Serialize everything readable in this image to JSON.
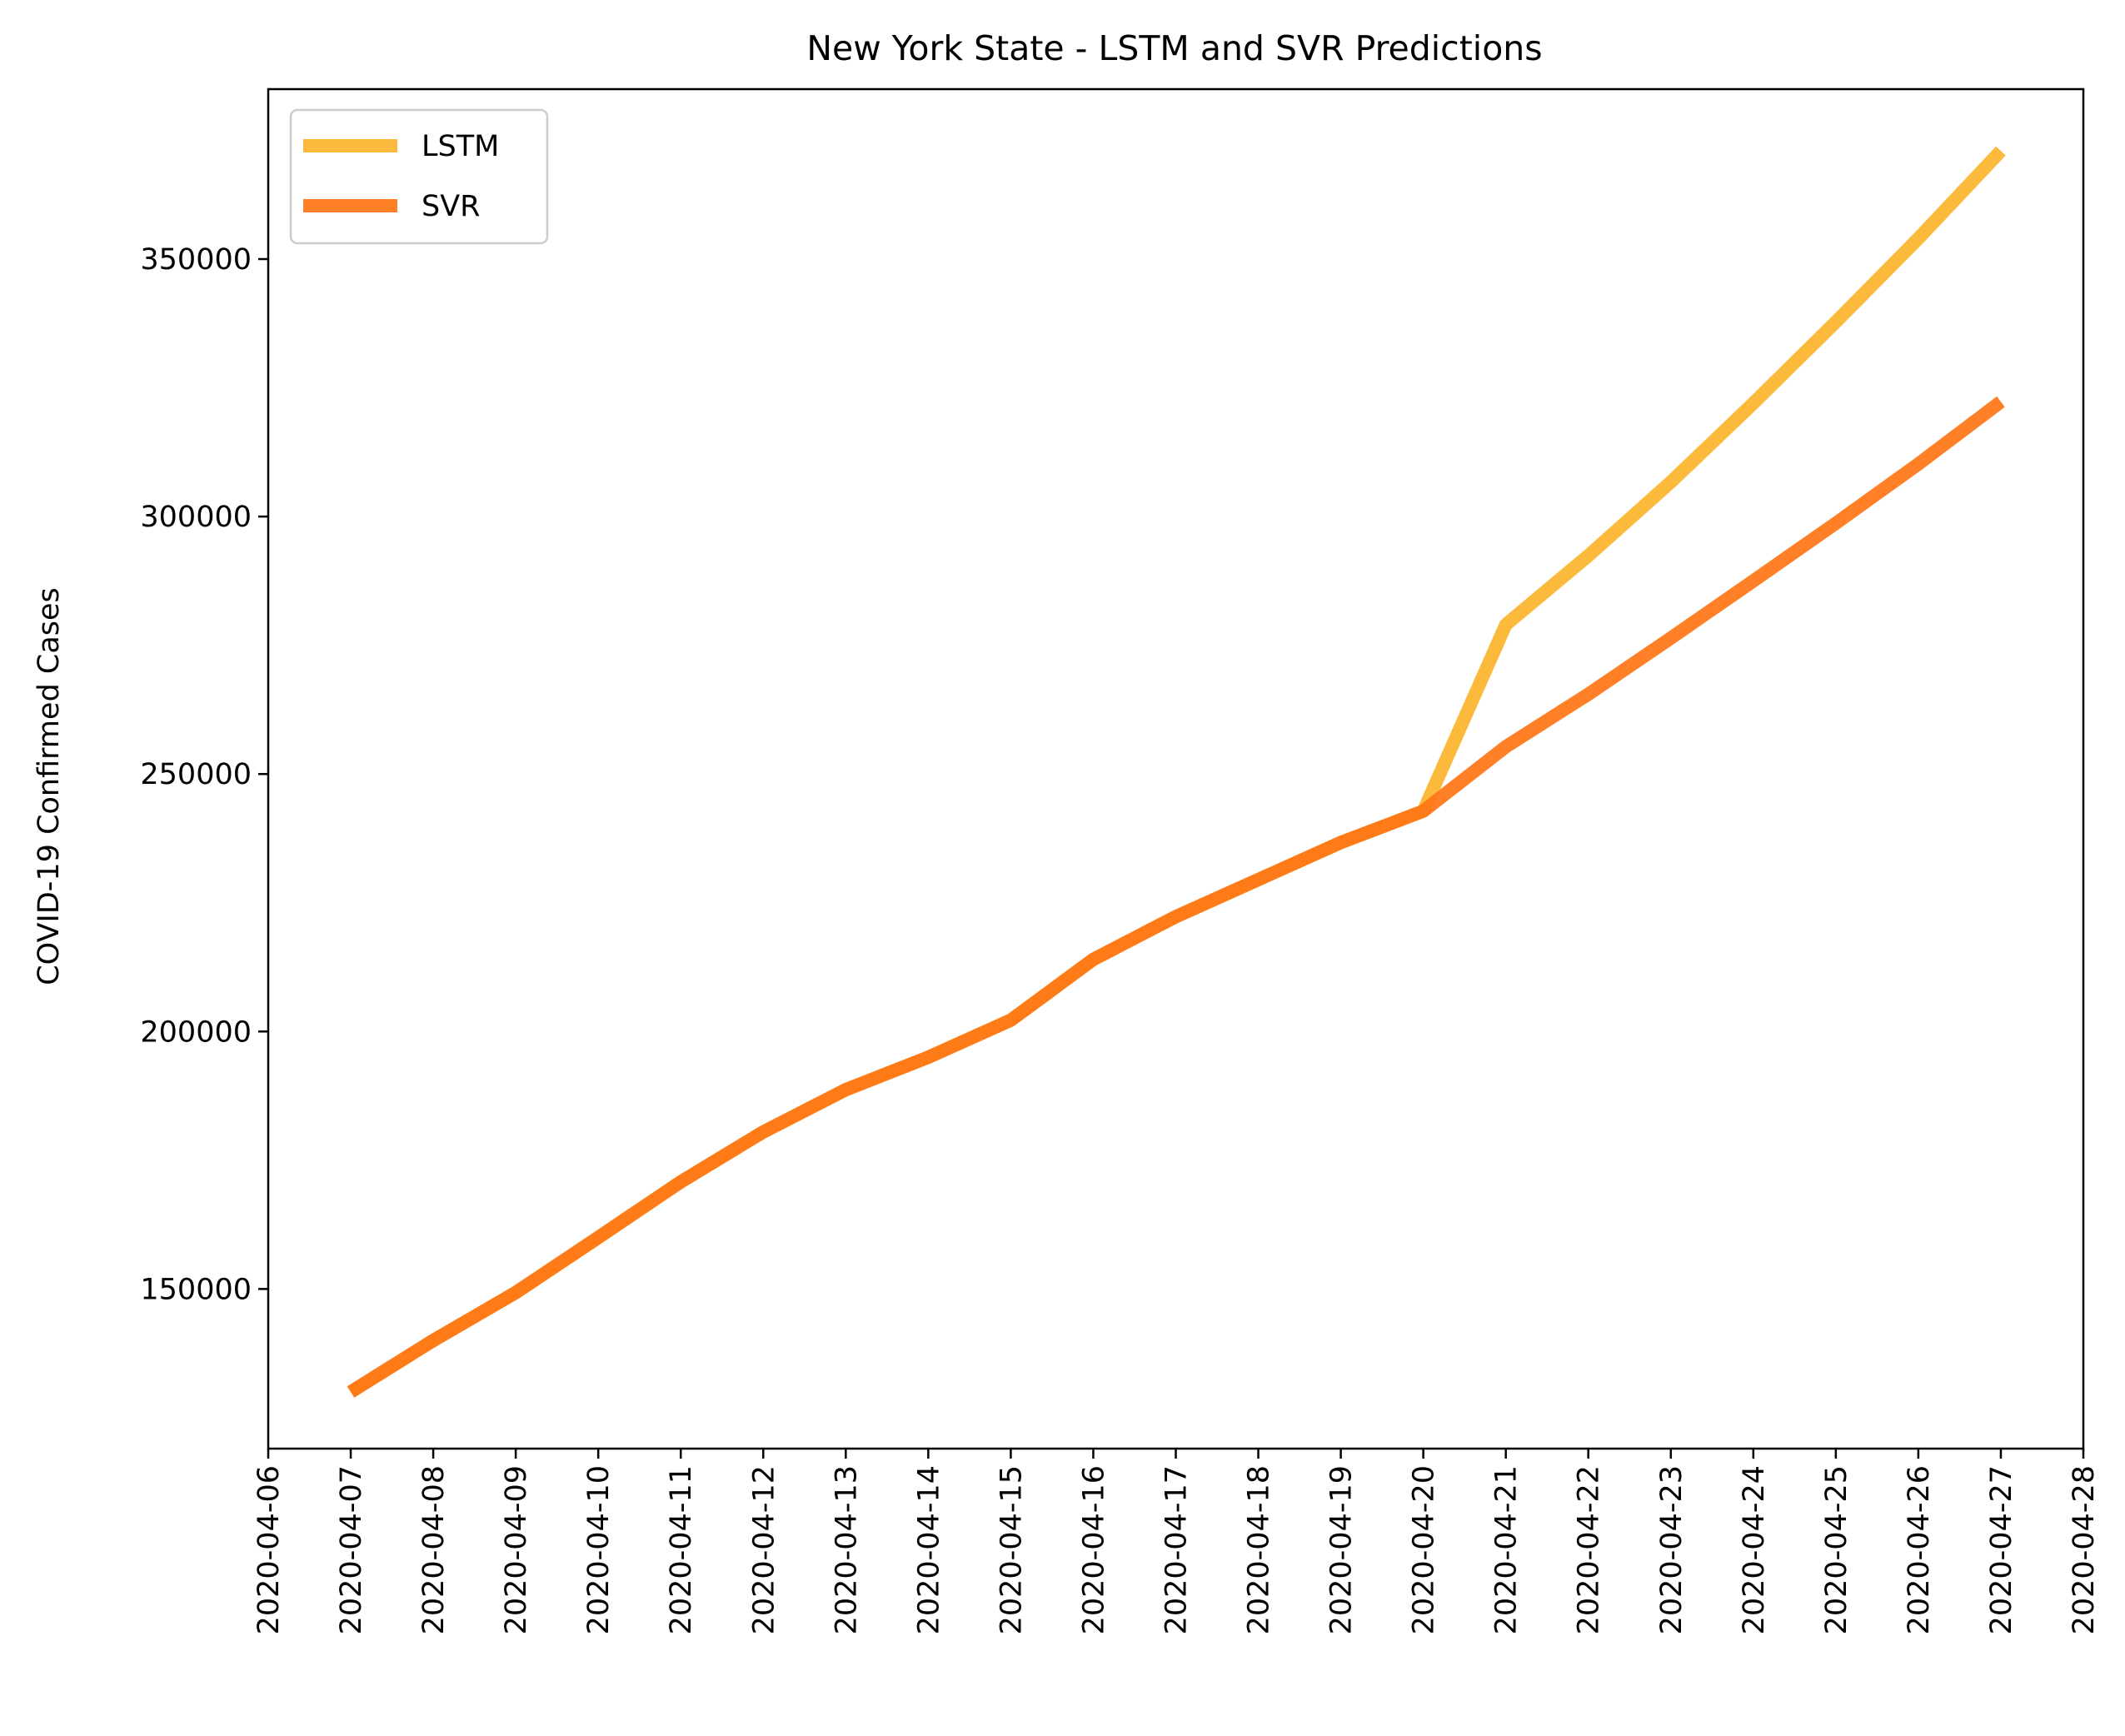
{
  "chart_data": {
    "type": "line",
    "title": "New York State - LSTM and SVR Predictions",
    "xlabel": "",
    "ylabel": "COVID-19 Confirmed Cases",
    "x_ticks": [
      "2020-04-06",
      "2020-04-07",
      "2020-04-08",
      "2020-04-09",
      "2020-04-10",
      "2020-04-11",
      "2020-04-12",
      "2020-04-13",
      "2020-04-14",
      "2020-04-15",
      "2020-04-16",
      "2020-04-17",
      "2020-04-18",
      "2020-04-19",
      "2020-04-20",
      "2020-04-21",
      "2020-04-22",
      "2020-04-23",
      "2020-04-24",
      "2020-04-25",
      "2020-04-26",
      "2020-04-27",
      "2020-04-28"
    ],
    "x": [
      "2020-04-07",
      "2020-04-08",
      "2020-04-09",
      "2020-04-10",
      "2020-04-11",
      "2020-04-12",
      "2020-04-13",
      "2020-04-14",
      "2020-04-15",
      "2020-04-16",
      "2020-04-17",
      "2020-04-18",
      "2020-04-19",
      "2020-04-20",
      "2020-04-21",
      "2020-04-22",
      "2020-04-23",
      "2020-04-24",
      "2020-04-25",
      "2020-04-26",
      "2020-04-27"
    ],
    "y_ticks": [
      150000,
      200000,
      250000,
      300000,
      350000
    ],
    "ylim": [
      119000,
      383000
    ],
    "legend_position": "upper-left",
    "grid": false,
    "series": [
      {
        "name": "LSTM",
        "color": "#fbb42a",
        "values": [
          130000,
          140000,
          149300,
          160000,
          170800,
          180500,
          188700,
          195000,
          202200,
          214000,
          222300,
          229500,
          236700,
          242800,
          279000,
          292400,
          306700,
          322000,
          337800,
          354000,
          371000
        ]
      },
      {
        "name": "SVR",
        "color": "#ff7515",
        "values": [
          130000,
          140000,
          149300,
          160000,
          170800,
          180500,
          188700,
          195000,
          202200,
          214000,
          222300,
          229500,
          236700,
          242800,
          255300,
          265500,
          276400,
          287500,
          298700,
          310200,
          322300
        ]
      }
    ]
  }
}
